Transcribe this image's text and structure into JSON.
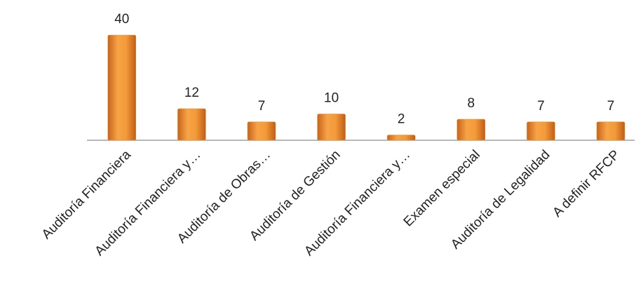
{
  "chart_data": {
    "type": "bar",
    "categories": [
      "Auditoría Financiera",
      "Auditoría Financiera y…",
      "Auditoría de Obras…",
      "Auditoría de Gestión",
      "Auditoría Financiera y…",
      "Examen especial",
      "Auditoría de Legalidad",
      "A definir RFCP"
    ],
    "values": [
      40,
      12,
      7,
      10,
      2,
      8,
      7,
      7
    ],
    "color": "#f0902a"
  }
}
